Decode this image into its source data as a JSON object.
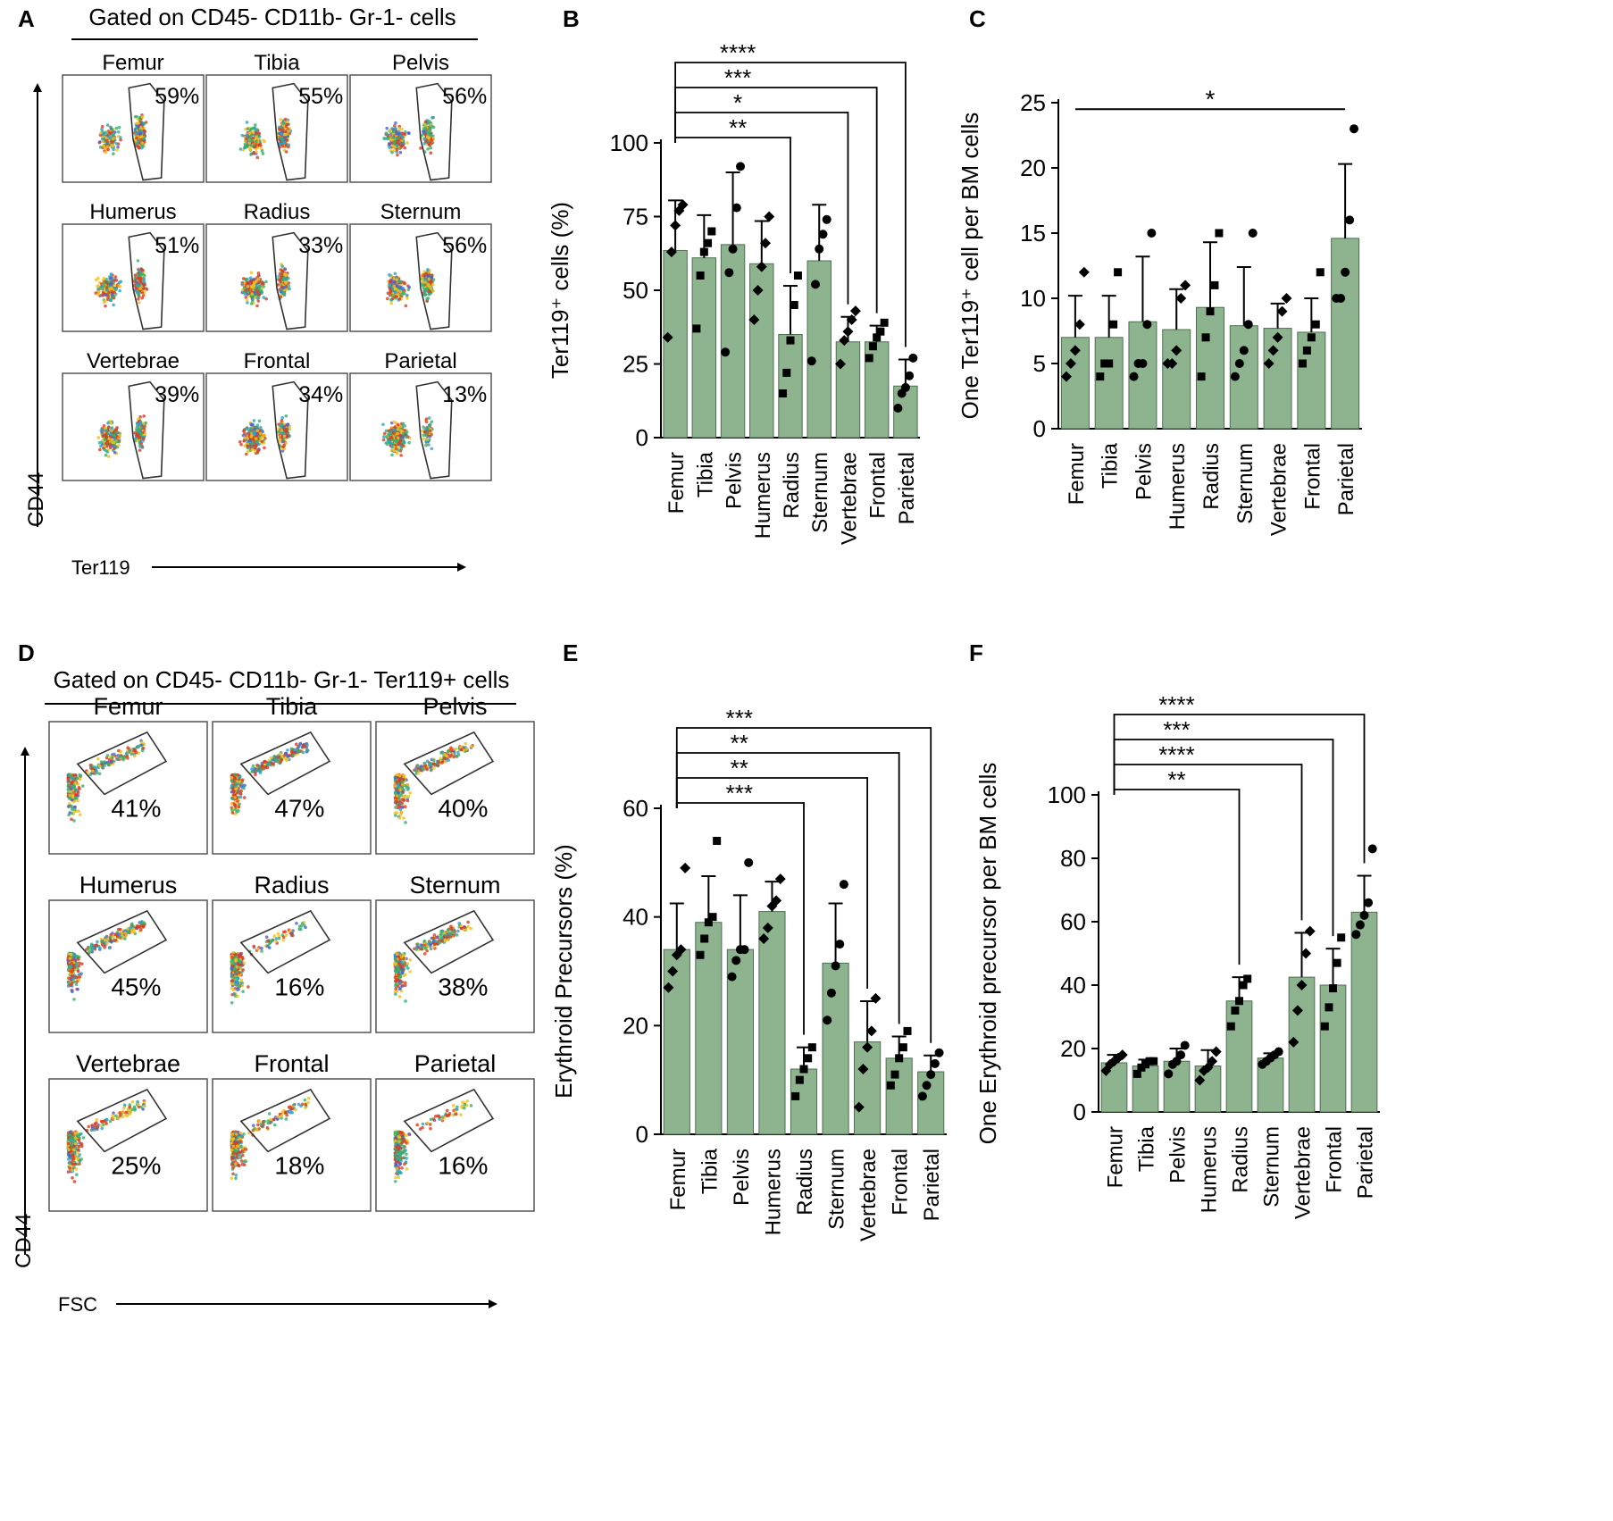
{
  "colors": {
    "bar": "#8db38f",
    "bar_stroke": "#4f6f52",
    "ink": "#000000"
  },
  "groups": [
    "Femur",
    "Tibia",
    "Pelvis",
    "Humerus",
    "Radius",
    "Sternum",
    "Vertebrae",
    "Frontal",
    "Parietal"
  ],
  "flow_panels": [
    {
      "panel_label": "A",
      "gate_title": "Gated on CD45- CD11b- Gr-1- cells",
      "y_axis": "CD44",
      "x_axis": "Ter119",
      "gate_shape": "vertical",
      "plots": [
        {
          "name": "Femur",
          "pct": "59%"
        },
        {
          "name": "Tibia",
          "pct": "55%"
        },
        {
          "name": "Pelvis",
          "pct": "56%"
        },
        {
          "name": "Humerus",
          "pct": "51%"
        },
        {
          "name": "Radius",
          "pct": "33%"
        },
        {
          "name": "Sternum",
          "pct": "56%"
        },
        {
          "name": "Vertebrae",
          "pct": "39%"
        },
        {
          "name": "Frontal",
          "pct": "34%"
        },
        {
          "name": "Parietal",
          "pct": "13%"
        }
      ]
    },
    {
      "panel_label": "D",
      "gate_title": "Gated on CD45- CD11b- Gr-1- Ter119+ cells",
      "y_axis": "CD44",
      "x_axis": "FSC",
      "gate_shape": "diagonal",
      "plots": [
        {
          "name": "Femur",
          "pct": "41%"
        },
        {
          "name": "Tibia",
          "pct": "47%"
        },
        {
          "name": "Pelvis",
          "pct": "40%"
        },
        {
          "name": "Humerus",
          "pct": "45%"
        },
        {
          "name": "Radius",
          "pct": "16%"
        },
        {
          "name": "Sternum",
          "pct": "38%"
        },
        {
          "name": "Vertebrae",
          "pct": "25%"
        },
        {
          "name": "Frontal",
          "pct": "18%"
        },
        {
          "name": "Parietal",
          "pct": "16%"
        }
      ]
    }
  ],
  "chart_data": [
    {
      "panel_label": "B",
      "type": "bar",
      "ylabel": "Ter119⁺ cells (%)",
      "ylim": [
        0,
        100
      ],
      "yticks": [
        0,
        25,
        50,
        75,
        100
      ],
      "categories": [
        "Femur",
        "Tibia",
        "Pelvis",
        "Humerus",
        "Radius",
        "Sternum",
        "Vertebrae",
        "Frontal",
        "Parietal"
      ],
      "values": [
        63.5,
        61,
        65.5,
        59,
        35,
        60,
        32.5,
        32.5,
        17.5
      ],
      "errors": [
        17,
        14.5,
        24.5,
        14.5,
        16.5,
        19,
        8.5,
        5.5,
        9
      ],
      "points": [
        [
          34,
          63,
          72,
          77,
          79
        ],
        [
          37,
          55,
          63,
          66,
          70
        ],
        [
          29,
          56,
          64,
          78,
          92
        ],
        [
          40,
          50,
          58,
          66,
          75
        ],
        [
          15,
          22,
          33,
          45,
          55
        ],
        [
          26,
          52,
          64,
          69,
          74
        ],
        [
          25,
          33,
          36,
          40,
          43
        ],
        [
          27,
          31,
          34,
          36,
          39
        ],
        [
          10,
          15,
          17,
          21,
          27
        ]
      ],
      "significance": [
        {
          "from": "Femur",
          "to": "Radius",
          "label": "**"
        },
        {
          "from": "Femur",
          "to": "Vertebrae",
          "label": "*"
        },
        {
          "from": "Femur",
          "to": "Frontal",
          "label": "***"
        },
        {
          "from": "Femur",
          "to": "Parietal",
          "label": "****"
        }
      ]
    },
    {
      "panel_label": "C",
      "type": "bar",
      "ylabel": "One Ter119⁺ cell per BM cells",
      "ylim": [
        0,
        25
      ],
      "yticks": [
        0,
        5,
        10,
        15,
        20,
        25
      ],
      "categories": [
        "Femur",
        "Tibia",
        "Pelvis",
        "Humerus",
        "Radius",
        "Sternum",
        "Vertebrae",
        "Frontal",
        "Parietal"
      ],
      "values": [
        7,
        7,
        8.2,
        7.6,
        9.3,
        7.9,
        7.7,
        7.4,
        14.6
      ],
      "errors": [
        3.2,
        3.2,
        5,
        3.1,
        5,
        4.5,
        1.9,
        2.6,
        5.7
      ],
      "points": [
        [
          4,
          5,
          6,
          8,
          12
        ],
        [
          4,
          5,
          5,
          8,
          12
        ],
        [
          4,
          5,
          5,
          8,
          15
        ],
        [
          5,
          5,
          6,
          10,
          11
        ],
        [
          4,
          7,
          9,
          11,
          15
        ],
        [
          4,
          5,
          6,
          8,
          15
        ],
        [
          5,
          6,
          7,
          9,
          10
        ],
        [
          5,
          6,
          7,
          8,
          12
        ],
        [
          10,
          10,
          12,
          16,
          23
        ]
      ],
      "significance": [
        {
          "from": "Femur",
          "to": "Parietal",
          "label": "*",
          "style": "flat"
        }
      ]
    },
    {
      "panel_label": "E",
      "type": "bar",
      "ylabel": "Erythroid Precursors (%)",
      "ylim": [
        0,
        60
      ],
      "yticks": [
        0,
        20,
        40,
        60
      ],
      "categories": [
        "Femur",
        "Tibia",
        "Pelvis",
        "Humerus",
        "Radius",
        "Sternum",
        "Vertebrae",
        "Frontal",
        "Parietal"
      ],
      "values": [
        34,
        39,
        34,
        41,
        12,
        31.5,
        17,
        14,
        11.5
      ],
      "errors": [
        8.5,
        8.5,
        10,
        5.5,
        4,
        11,
        7.5,
        4,
        3
      ],
      "points": [
        [
          27,
          30,
          33,
          34,
          49
        ],
        [
          33,
          36,
          39,
          40,
          54
        ],
        [
          29,
          32,
          34,
          34,
          50
        ],
        [
          36,
          38,
          42,
          43,
          47
        ],
        [
          7,
          10,
          12,
          14,
          16
        ],
        [
          21,
          26,
          31,
          35,
          46
        ],
        [
          5,
          12,
          16,
          19,
          25
        ],
        [
          9,
          11,
          14,
          16,
          19
        ],
        [
          7,
          9,
          11,
          13,
          15
        ]
      ],
      "significance": [
        {
          "from": "Femur",
          "to": "Radius",
          "label": "***"
        },
        {
          "from": "Femur",
          "to": "Vertebrae",
          "label": "**"
        },
        {
          "from": "Femur",
          "to": "Frontal",
          "label": "**"
        },
        {
          "from": "Femur",
          "to": "Parietal",
          "label": "***"
        }
      ]
    },
    {
      "panel_label": "F",
      "type": "bar",
      "ylabel": "One Erythroid precursor per BM cells",
      "ylim": [
        0,
        100
      ],
      "yticks": [
        0,
        20,
        40,
        60,
        80,
        100
      ],
      "categories": [
        "Femur",
        "Tibia",
        "Pelvis",
        "Humerus",
        "Radius",
        "Sternum",
        "Vertebrae",
        "Frontal",
        "Parietal"
      ],
      "values": [
        15.5,
        14.5,
        16,
        14.5,
        35,
        17,
        42.5,
        40,
        63
      ],
      "errors": [
        2.5,
        2,
        4,
        5,
        7.5,
        1.5,
        14,
        11.5,
        11.5
      ],
      "points": [
        [
          13,
          15,
          16,
          17,
          18
        ],
        [
          12,
          14,
          15,
          16,
          16
        ],
        [
          12,
          15,
          16,
          18,
          21
        ],
        [
          10,
          13,
          14,
          16,
          19
        ],
        [
          27,
          32,
          35,
          40,
          42
        ],
        [
          15,
          16,
          17,
          18,
          19
        ],
        [
          22,
          32,
          40,
          50,
          57
        ],
        [
          27,
          33,
          39,
          47,
          55
        ],
        [
          56,
          59,
          62,
          66,
          83
        ]
      ],
      "significance": [
        {
          "from": "Femur",
          "to": "Radius",
          "label": "**"
        },
        {
          "from": "Femur",
          "to": "Vertebrae",
          "label": "****"
        },
        {
          "from": "Femur",
          "to": "Frontal",
          "label": "***"
        },
        {
          "from": "Femur",
          "to": "Parietal",
          "label": "****"
        }
      ]
    }
  ]
}
